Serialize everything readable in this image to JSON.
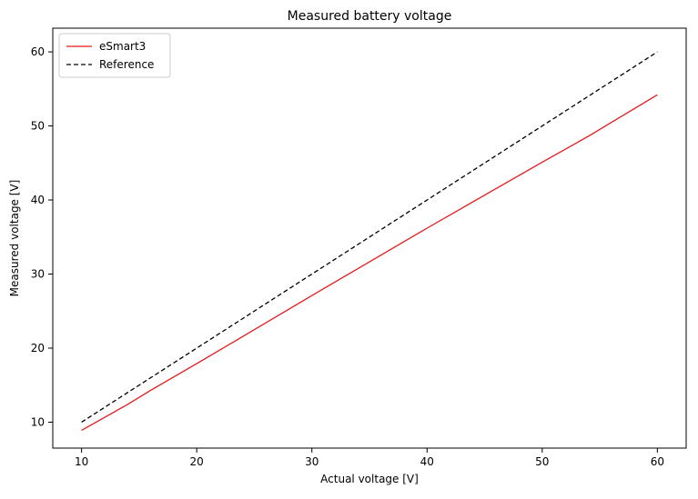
{
  "chart_data": {
    "type": "line",
    "title": "Measured battery voltage",
    "xlabel": "Actual voltage [V]",
    "ylabel": "Measured voltage [V]",
    "xlim": [
      7.5,
      62.5
    ],
    "ylim": [
      6.5,
      63.2
    ],
    "xticks": [
      10,
      20,
      30,
      40,
      50,
      60
    ],
    "yticks": [
      10,
      20,
      30,
      40,
      50,
      60
    ],
    "grid": false,
    "legend_position": "top-left",
    "series": [
      {
        "name": "eSmart3",
        "color": "#e31a1c",
        "style": "solid",
        "x": [
          10,
          14,
          16,
          20,
          30,
          40,
          50,
          54,
          60
        ],
        "y": [
          8.9,
          12.4,
          14.3,
          17.9,
          27.1,
          36.2,
          45.1,
          48.6,
          54.2
        ]
      },
      {
        "name": "Reference",
        "color": "#000000",
        "style": "dashed",
        "x": [
          10,
          60
        ],
        "y": [
          10,
          60
        ]
      }
    ]
  }
}
